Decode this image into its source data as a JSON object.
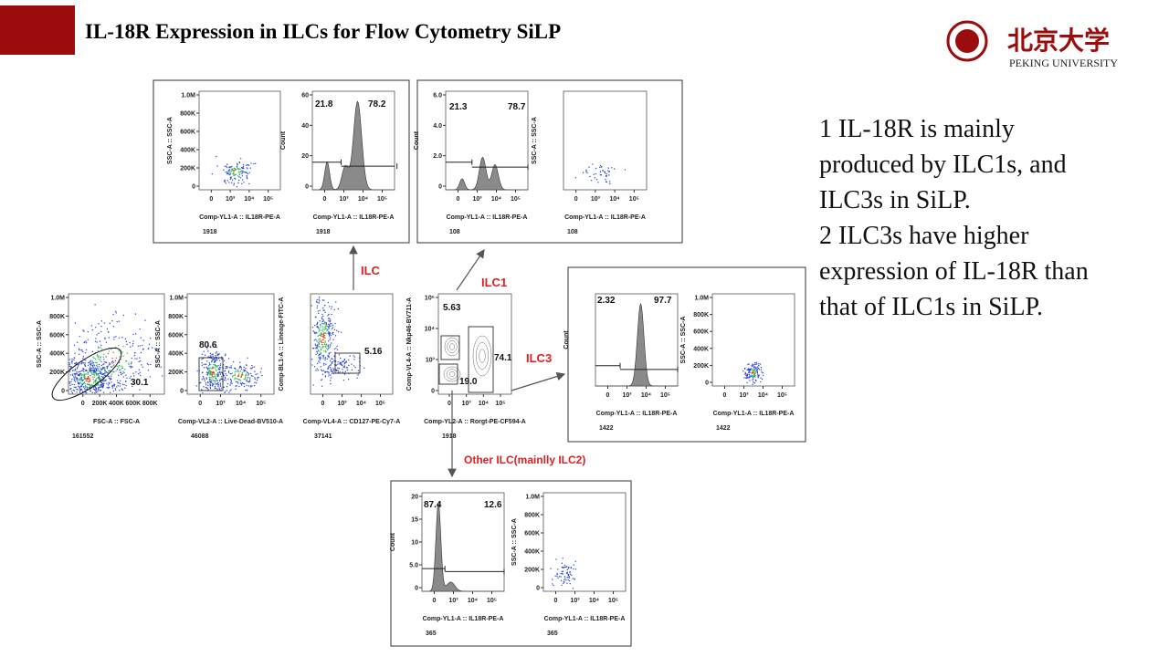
{
  "header": {
    "title": "IL-18R Expression in ILCs for Flow Cytometry SiLP"
  },
  "logo": {
    "name": "北京大学",
    "subtitle": "PEKING UNIVERSITY"
  },
  "notes": [
    "1 IL-18R is mainly",
    "produced by ILC1s, and",
    "ILC3s in SiLP.",
    "2 ILC3s have higher",
    "expression of IL-18R than",
    "that of ILC1s in SiLP."
  ],
  "arrows": [
    "ILC",
    "ILC1",
    "ILC3",
    "Other ILC(mainlly ILC2)"
  ],
  "plots": [
    {
      "kind": "scatter",
      "ylabel": "SSC-A :: SSC-A",
      "xlabel": "Comp-YL1-A :: IL18R-PE-A",
      "yticks": [
        "1.0M",
        "800K",
        "600K",
        "400K",
        "200K",
        "0"
      ],
      "xticks": [
        "0",
        "10³",
        "10⁴",
        "10⁵"
      ],
      "count": "1918"
    },
    {
      "kind": "histogram",
      "ylabel": "Count",
      "xlabel": "Comp-YL1-A :: IL18R-PE-A",
      "yticks": [
        "60",
        "40",
        "20",
        "0"
      ],
      "xticks": [
        "0",
        "10³",
        "10⁴",
        "10⁵"
      ],
      "gates": [
        "21.8",
        "78.2"
      ],
      "count": "1918"
    },
    {
      "kind": "histogram",
      "ylabel": "Count",
      "xlabel": "Comp-YL1-A :: IL18R-PE-A",
      "yticks": [
        "6.0",
        "4.0",
        "2.0",
        "0"
      ],
      "xticks": [
        "0",
        "10³",
        "10⁴",
        "10⁵"
      ],
      "gates": [
        "21.3",
        "78.7"
      ],
      "count": "108"
    },
    {
      "kind": "scatter",
      "ylabel": "SSC-A :: SSC-A",
      "xlabel": "Comp-YL1-A :: IL18R-PE-A",
      "xticks": [
        "0",
        "10³",
        "10⁴",
        "10⁵"
      ],
      "count": "108"
    },
    {
      "kind": "scatter",
      "ylabel": "SSC-A :: SSC-A",
      "xlabel": "FSC-A :: FSC-A",
      "yticks": [
        "1.0M",
        "800K",
        "600K",
        "400K",
        "200K",
        "0"
      ],
      "xticks": [
        "0",
        "200K",
        "400K",
        "600K",
        "800K"
      ],
      "gates": [
        "30.1"
      ],
      "count": "161552"
    },
    {
      "kind": "scatter",
      "ylabel": "SSC-A :: SSC-A",
      "xlabel": "Comp-VL2-A :: Live-Dead-BV510-A",
      "yticks": [
        "1.0M",
        "800K",
        "600K",
        "400K",
        "200K",
        "0"
      ],
      "xticks": [
        "0",
        "10³",
        "10⁴",
        "10⁵"
      ],
      "gates": [
        "80.6"
      ],
      "count": "46088"
    },
    {
      "kind": "scatter",
      "ylabel": "Comp-BL1-A :: Lineage-FITC-A",
      "xlabel": "Comp-VL4-A :: CD127-PE-Cy7-A",
      "xticks": [
        "0",
        "10³",
        "10⁴",
        "10⁵"
      ],
      "gates": [
        "5.16"
      ],
      "count": "37141"
    },
    {
      "kind": "contour",
      "ylabel": "Comp-VL4-A :: Nkp46-BV711-A",
      "xlabel": "Comp-YL2-A :: Rorgt-PE-CF594-A",
      "yticks": [
        "10⁵",
        "10⁴",
        "10³",
        "0"
      ],
      "xticks": [
        "0",
        "10³",
        "10⁴",
        "10⁵"
      ],
      "gates": [
        "5.63",
        "74.1",
        "19.0"
      ],
      "count": "1918"
    },
    {
      "kind": "histogram",
      "ylabel": "Count",
      "xlabel": "Comp-YL1-A :: IL18R-PE-A",
      "xticks": [
        "0",
        "10³",
        "10⁴",
        "10⁵"
      ],
      "gates": [
        "2.32",
        "97.7"
      ],
      "count": "1422"
    },
    {
      "kind": "scatter",
      "ylabel": "SSC-A :: SSC-A",
      "xlabel": "Comp-YL1-A :: IL18R-PE-A",
      "yticks": [
        "1.0M",
        "800K",
        "600K",
        "400K",
        "200K",
        "0"
      ],
      "xticks": [
        "0",
        "10³",
        "10⁴",
        "10⁵"
      ],
      "count": "1422"
    },
    {
      "kind": "histogram",
      "ylabel": "Count",
      "xlabel": "Comp-YL1-A :: IL18R-PE-A",
      "yticks": [
        "20",
        "15",
        "10",
        "5.0",
        "0"
      ],
      "xticks": [
        "0",
        "10³",
        "10⁴",
        "10⁵"
      ],
      "gates": [
        "87.4",
        "12.6"
      ],
      "count": "365"
    },
    {
      "kind": "scatter",
      "ylabel": "SSC-A :: SSC-A",
      "xlabel": "Comp-YL1-A :: IL18R-PE-A",
      "yticks": [
        "1.0M",
        "800K",
        "600K",
        "400K",
        "200K",
        "0"
      ],
      "xticks": [
        "0",
        "10³",
        "10⁴",
        "10⁵"
      ],
      "count": "365"
    }
  ]
}
